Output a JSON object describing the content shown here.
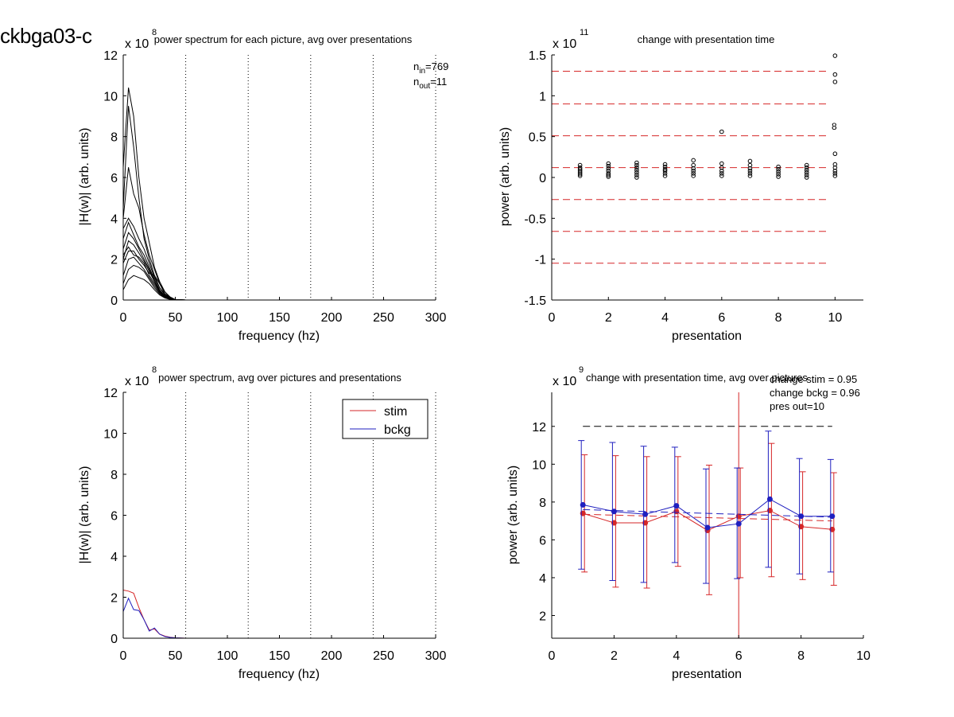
{
  "figure_label": "ckbga03-c",
  "chart_data": [
    {
      "id": "p1",
      "type": "line",
      "title": "power spectrum for each picture, avg over presentations",
      "xlabel": "frequency (hz)",
      "ylabel": "|H(w)| (arb. units)",
      "exponent_label": "x 10",
      "exponent": "8",
      "xlim": [
        0,
        300
      ],
      "ylim": [
        0,
        12
      ],
      "xticks": [
        0,
        50,
        100,
        150,
        200,
        250,
        300
      ],
      "yticks": [
        0,
        2,
        4,
        6,
        8,
        10,
        12
      ],
      "vlines": [
        60,
        120,
        180,
        240,
        300
      ],
      "annotations": [
        {
          "base": "n",
          "sub": "in",
          "text": "=769"
        },
        {
          "base": "n",
          "sub": "out",
          "text": "=11"
        }
      ],
      "note": "many overlapping black spectra; representative curves listed",
      "series": [
        {
          "x": [
            0,
            5,
            10,
            15,
            20,
            25,
            30,
            35,
            40,
            45,
            50,
            60,
            80,
            100,
            300
          ],
          "values": [
            6.5,
            10.4,
            9.0,
            6.0,
            4.0,
            2.8,
            1.6,
            0.9,
            0.4,
            0.15,
            0.02,
            0,
            0,
            0,
            0
          ]
        },
        {
          "x": [
            0,
            5,
            10,
            15,
            20,
            25,
            30,
            35,
            40,
            45,
            50,
            60,
            80,
            100,
            300
          ],
          "values": [
            4.5,
            9.5,
            7.5,
            5.0,
            3.0,
            2.0,
            1.2,
            0.6,
            0.3,
            0.1,
            0.01,
            0,
            0,
            0,
            0
          ]
        },
        {
          "x": [
            0,
            5,
            10,
            15,
            20,
            25,
            30,
            35,
            40,
            45,
            50,
            60,
            80,
            100,
            300
          ],
          "values": [
            4.0,
            6.5,
            5.2,
            4.5,
            3.2,
            2.2,
            1.5,
            0.8,
            0.3,
            0.1,
            0.01,
            0,
            0,
            0,
            0
          ]
        },
        {
          "x": [
            0,
            5,
            10,
            15,
            20,
            25,
            30,
            35,
            40,
            45,
            50,
            60,
            80,
            100,
            300
          ],
          "values": [
            3.5,
            4.0,
            3.6,
            3.0,
            2.5,
            1.8,
            1.1,
            0.6,
            0.25,
            0.08,
            0.01,
            0,
            0,
            0,
            0
          ]
        },
        {
          "x": [
            0,
            5,
            10,
            15,
            20,
            25,
            30,
            35,
            40,
            45,
            50,
            60,
            80,
            100,
            300
          ],
          "values": [
            3.0,
            3.8,
            3.2,
            2.6,
            2.2,
            1.6,
            1.0,
            0.5,
            0.2,
            0.06,
            0.01,
            0,
            0,
            0,
            0
          ]
        },
        {
          "x": [
            0,
            5,
            10,
            15,
            20,
            25,
            30,
            35,
            40,
            45,
            50,
            60,
            80,
            100,
            300
          ],
          "values": [
            2.5,
            3.3,
            3.0,
            2.5,
            2.0,
            1.5,
            0.9,
            0.45,
            0.2,
            0.05,
            0.01,
            0,
            0,
            0,
            0
          ]
        },
        {
          "x": [
            0,
            5,
            10,
            15,
            20,
            25,
            30,
            35,
            40,
            45,
            50,
            60,
            80,
            100,
            300
          ],
          "values": [
            2.0,
            2.9,
            2.7,
            2.3,
            1.9,
            1.4,
            0.9,
            0.4,
            0.15,
            0.05,
            0.01,
            0,
            0,
            0,
            0
          ]
        },
        {
          "x": [
            0,
            5,
            10,
            15,
            20,
            25,
            30,
            35,
            40,
            45,
            50,
            60,
            80,
            100,
            300
          ],
          "values": [
            1.8,
            2.4,
            2.4,
            2.0,
            1.7,
            1.3,
            1.2,
            0.8,
            0.4,
            0.1,
            0.01,
            0,
            0,
            0,
            0
          ]
        },
        {
          "x": [
            0,
            5,
            10,
            15,
            20,
            25,
            30,
            35,
            40,
            45,
            50,
            60,
            80,
            100,
            300
          ],
          "values": [
            1.2,
            2.0,
            2.1,
            1.8,
            1.5,
            1.1,
            0.7,
            0.35,
            0.15,
            0.05,
            0.01,
            0,
            0,
            0,
            0
          ]
        },
        {
          "x": [
            0,
            5,
            10,
            15,
            20,
            25,
            30,
            35,
            40,
            45,
            50,
            60,
            80,
            100,
            300
          ],
          "values": [
            0.8,
            1.5,
            1.7,
            1.6,
            1.4,
            1.0,
            0.6,
            0.3,
            0.12,
            0.04,
            0.01,
            0,
            0,
            0,
            0
          ]
        },
        {
          "x": [
            0,
            5,
            10,
            15,
            20,
            25,
            30,
            35,
            40,
            45,
            50,
            60,
            80,
            100,
            300
          ],
          "values": [
            2.2,
            2.6,
            2.2,
            2.1,
            1.8,
            1.2,
            0.8,
            0.4,
            0.2,
            0.06,
            0.01,
            0,
            0,
            0,
            0
          ]
        },
        {
          "x": [
            0,
            5,
            10,
            15,
            20,
            25,
            30,
            35,
            40,
            45,
            50,
            60,
            80,
            100,
            300
          ],
          "values": [
            0.5,
            1.0,
            1.2,
            1.1,
            1.0,
            0.8,
            0.5,
            0.25,
            0.1,
            0.03,
            0.01,
            0,
            0,
            0,
            0
          ]
        }
      ]
    },
    {
      "id": "p2",
      "type": "scatter",
      "title": "change with presentation time",
      "xlabel": "presentation",
      "ylabel": "power (arb. units)",
      "exponent_label": "x 10",
      "exponent": "11",
      "xlim": [
        0,
        11
      ],
      "ylim": [
        -1.5,
        1.5
      ],
      "xticks": [
        0,
        2,
        4,
        6,
        8,
        10
      ],
      "yticks": [
        -1.5,
        -1,
        -0.5,
        0,
        0.5,
        1,
        1.5
      ],
      "hlines": [
        1.3,
        0.9,
        0.51,
        0.12,
        -0.27,
        -0.66,
        -1.05
      ],
      "hline_color": "#d62728",
      "marker_label": {
        "x": 10,
        "y": 0.63,
        "text": "8"
      },
      "points": [
        {
          "x": 1,
          "y": [
            0.02,
            0.04,
            0.06,
            0.08,
            0.1,
            0.12,
            0.15
          ]
        },
        {
          "x": 2,
          "y": [
            0.01,
            0.03,
            0.05,
            0.08,
            0.11,
            0.14,
            0.17
          ]
        },
        {
          "x": 3,
          "y": [
            0.0,
            0.03,
            0.06,
            0.09,
            0.12,
            0.15,
            0.18
          ]
        },
        {
          "x": 4,
          "y": [
            0.02,
            0.05,
            0.08,
            0.1,
            0.13,
            0.16
          ]
        },
        {
          "x": 5,
          "y": [
            0.02,
            0.05,
            0.08,
            0.11,
            0.15,
            0.21
          ]
        },
        {
          "x": 6,
          "y": [
            0.02,
            0.05,
            0.08,
            0.12,
            0.17,
            0.56
          ]
        },
        {
          "x": 7,
          "y": [
            0.02,
            0.05,
            0.08,
            0.11,
            0.15,
            0.2
          ]
        },
        {
          "x": 8,
          "y": [
            0.01,
            0.04,
            0.07,
            0.1,
            0.13
          ]
        },
        {
          "x": 9,
          "y": [
            0.0,
            0.03,
            0.06,
            0.09,
            0.12,
            0.15
          ]
        },
        {
          "x": 10,
          "y": [
            0.02,
            0.05,
            0.08,
            0.12,
            0.16,
            0.29,
            1.17,
            1.26,
            1.49
          ]
        }
      ]
    },
    {
      "id": "p3",
      "type": "line",
      "title": "power spectrum, avg over pictures and presentations",
      "xlabel": "frequency (hz)",
      "ylabel": "|H(w)| (arb. units)",
      "exponent_label": "x 10",
      "exponent": "8",
      "xlim": [
        0,
        300
      ],
      "ylim": [
        0,
        12
      ],
      "xticks": [
        0,
        50,
        100,
        150,
        200,
        250,
        300
      ],
      "yticks": [
        0,
        2,
        4,
        6,
        8,
        10,
        12
      ],
      "vlines": [
        60,
        120,
        180,
        240,
        300
      ],
      "legend": {
        "position": "top-right"
      },
      "series": [
        {
          "name": "stim",
          "color": "#d62728",
          "x": [
            0,
            5,
            10,
            15,
            20,
            25,
            30,
            35,
            40,
            45,
            50,
            55,
            60,
            300
          ],
          "values": [
            2.35,
            2.3,
            2.2,
            1.5,
            0.9,
            0.4,
            0.45,
            0.2,
            0.1,
            0.05,
            0.02,
            0.01,
            0,
            0
          ]
        },
        {
          "name": "bckg",
          "color": "#1f1fbf",
          "x": [
            0,
            5,
            10,
            15,
            20,
            25,
            30,
            35,
            40,
            45,
            50,
            55,
            60,
            300
          ],
          "values": [
            1.3,
            1.95,
            1.4,
            1.35,
            0.9,
            0.35,
            0.5,
            0.2,
            0.08,
            0.04,
            0.02,
            0.01,
            0,
            0
          ]
        }
      ]
    },
    {
      "id": "p4",
      "type": "line",
      "title": "change with presentation time, avg over pictures",
      "xlabel": "presentation",
      "ylabel": "power (arb. units)",
      "exponent_label": "x 10",
      "exponent": "9",
      "xlim": [
        0,
        10
      ],
      "ylim": [
        0.8,
        13.8
      ],
      "xticks": [
        0,
        2,
        4,
        6,
        8,
        10
      ],
      "yticks": [
        2,
        4,
        6,
        8,
        10,
        12
      ],
      "hline": {
        "y": 12,
        "color": "#000000"
      },
      "vline": {
        "x": 6,
        "color": "#d62728"
      },
      "annotations": [
        "change stim = 0.95",
        "change bckg = 0.96",
        "pres out=10"
      ],
      "series": [
        {
          "name": "stim",
          "color": "#d62728",
          "x": [
            1,
            2,
            3,
            4,
            5,
            6,
            7,
            8,
            9
          ],
          "values": [
            7.4,
            6.9,
            6.9,
            7.5,
            6.5,
            7.25,
            7.55,
            6.7,
            6.55
          ],
          "err_low": [
            4.3,
            3.5,
            3.45,
            4.6,
            3.1,
            4.0,
            4.05,
            3.9,
            3.6
          ],
          "err_high": [
            10.5,
            10.45,
            10.4,
            10.4,
            9.95,
            9.8,
            11.1,
            9.6,
            9.55
          ],
          "trend": [
            7.35,
            7.0
          ]
        },
        {
          "name": "bckg",
          "color": "#1f1fbf",
          "x": [
            1,
            2,
            3,
            4,
            5,
            6,
            7,
            8,
            9
          ],
          "values": [
            7.85,
            7.5,
            7.35,
            7.8,
            6.65,
            6.85,
            8.15,
            7.25,
            7.25
          ],
          "err_low": [
            4.45,
            3.85,
            3.75,
            4.8,
            3.7,
            3.95,
            4.55,
            4.2,
            4.3
          ],
          "err_high": [
            11.25,
            11.15,
            10.95,
            10.9,
            9.75,
            9.8,
            11.75,
            10.3,
            10.25
          ],
          "trend": [
            7.6,
            7.2
          ]
        }
      ]
    }
  ]
}
